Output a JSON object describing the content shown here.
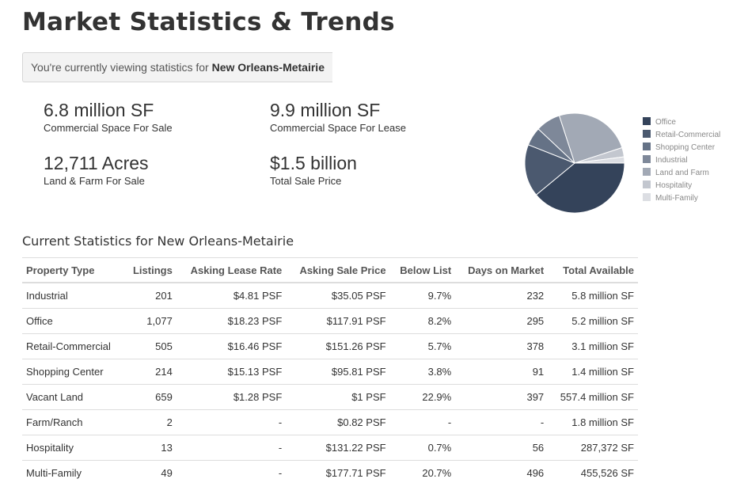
{
  "page_title": "Market Statistics & Trends",
  "viewing": {
    "prefix": "You're currently viewing statistics for ",
    "location": "New Orleans-Metairie"
  },
  "summary": [
    {
      "value": "6.8 million SF",
      "label": "Commercial Space For Sale"
    },
    {
      "value": "9.9 million SF",
      "label": "Commercial Space For Lease"
    },
    {
      "value": "12,711 Acres",
      "label": "Land & Farm For Sale"
    },
    {
      "value": "$1.5 billion",
      "label": "Total Sale Price"
    }
  ],
  "chart_data": {
    "type": "pie",
    "labels": [
      "Office",
      "Retail-Commercial",
      "Shopping Center",
      "Industrial",
      "Land and Farm",
      "Hospitality",
      "Multi-Family"
    ],
    "values": [
      39,
      17,
      6,
      8,
      25,
      3,
      2
    ],
    "colors": [
      "#34435a",
      "#4b596f",
      "#657286",
      "#7e8899",
      "#a2a9b5",
      "#c3c7cf",
      "#dcdee3"
    ],
    "legend_position": "right"
  },
  "section_title": "Current Statistics for New Orleans-Metairie",
  "table": {
    "columns": [
      "Property Type",
      "Listings",
      "Asking Lease Rate",
      "Asking Sale Price",
      "Below List",
      "Days on Market",
      "Total Available"
    ],
    "rows": [
      [
        "Industrial",
        "201",
        "$4.81 PSF",
        "$35.05 PSF",
        "9.7%",
        "232",
        "5.8 million SF"
      ],
      [
        "Office",
        "1,077",
        "$18.23 PSF",
        "$117.91 PSF",
        "8.2%",
        "295",
        "5.2 million SF"
      ],
      [
        "Retail-Commercial",
        "505",
        "$16.46 PSF",
        "$151.26 PSF",
        "5.7%",
        "378",
        "3.1 million SF"
      ],
      [
        "Shopping Center",
        "214",
        "$15.13 PSF",
        "$95.81 PSF",
        "3.8%",
        "91",
        "1.4 million SF"
      ],
      [
        "Vacant Land",
        "659",
        "$1.28 PSF",
        "$1 PSF",
        "22.9%",
        "397",
        "557.4 million SF"
      ],
      [
        "Farm/Ranch",
        "2",
        "-",
        "$0.82 PSF",
        "-",
        "-",
        "1.8 million SF"
      ],
      [
        "Hospitality",
        "13",
        "-",
        "$131.22 PSF",
        "0.7%",
        "56",
        "287,372 SF"
      ],
      [
        "Multi-Family",
        "49",
        "-",
        "$177.71 PSF",
        "20.7%",
        "496",
        "455,526 SF"
      ]
    ]
  }
}
